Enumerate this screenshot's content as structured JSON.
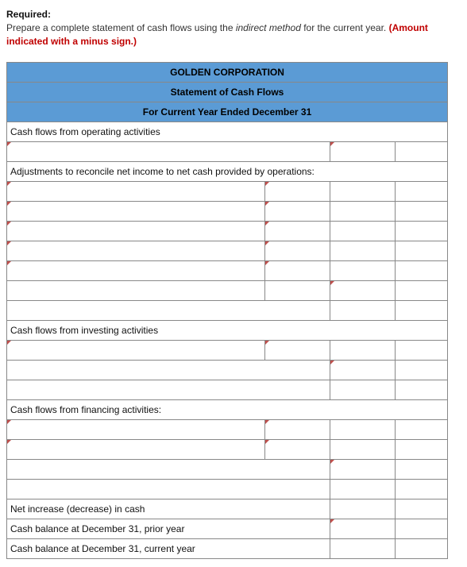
{
  "prompt": {
    "required_label": "Required:",
    "line1_a": "Prepare a complete statement of cash flows using the ",
    "line1_ital": "indirect method",
    "line1_b": " for the current year. ",
    "red_a": "(Amount",
    "red_b": "indicated with a minus sign.)"
  },
  "table": {
    "title1": "GOLDEN CORPORATION",
    "title2": "Statement of Cash Flows",
    "title3": "For Current Year Ended December 31",
    "sec_operating": "Cash flows from operating activities",
    "sec_adjust": "Adjustments to reconcile net income to net cash provided by operations:",
    "sec_investing": "Cash flows from investing activities",
    "sec_financing": "Cash flows from financing activities:",
    "net_inc": "Net increase (decrease) in cash",
    "bal_prior": "Cash balance at December 31, prior year",
    "bal_curr": "Cash balance at December 31, current year",
    "colors": {
      "header_bg": "#5b9bd5",
      "marker": "#c0504d",
      "border": "#888888"
    }
  }
}
